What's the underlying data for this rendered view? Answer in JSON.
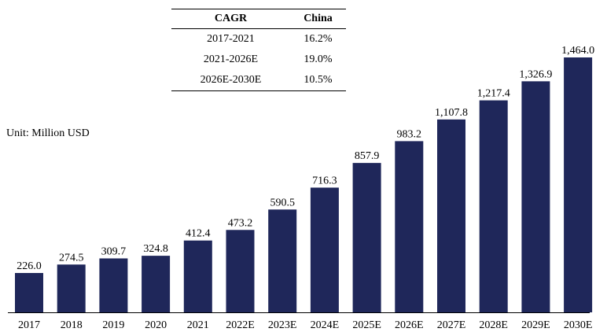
{
  "unit_label": "Unit: Million USD",
  "cagr_table": {
    "headers": [
      "CAGR",
      "China"
    ],
    "rows": [
      [
        "2017-2021",
        "16.2%"
      ],
      [
        "2021-2026E",
        "19.0%"
      ],
      [
        "2026E-2030E",
        "10.5%"
      ]
    ]
  },
  "chart_data": {
    "type": "bar",
    "categories": [
      "2017",
      "2018",
      "2019",
      "2020",
      "2021",
      "2022E",
      "2023E",
      "2024E",
      "2025E",
      "2026E",
      "2027E",
      "2028E",
      "2029E",
      "2030E"
    ],
    "values": [
      226.0,
      274.5,
      309.7,
      324.8,
      412.4,
      473.2,
      590.5,
      716.3,
      857.9,
      983.2,
      1107.8,
      1217.4,
      1326.9,
      1464.0
    ],
    "value_labels": [
      "226.0",
      "274.5",
      "309.7",
      "324.8",
      "412.4",
      "473.2",
      "590.5",
      "716.3",
      "857.9",
      "983.2",
      "1,107.8",
      "1,217.4",
      "1,326.9",
      "1,464.0"
    ],
    "bar_color": "#1f275a",
    "ylim": [
      0,
      1464.0
    ],
    "grid": false,
    "legend": false
  }
}
